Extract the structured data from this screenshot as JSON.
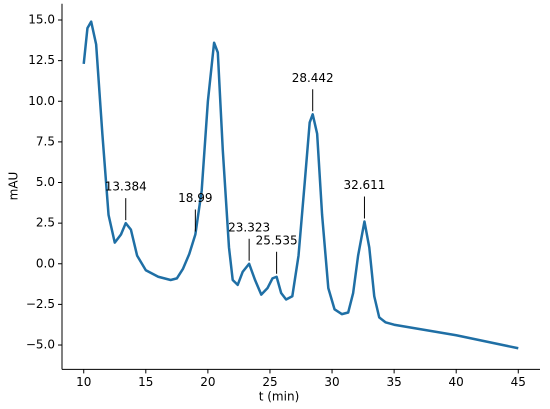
{
  "chart_data": {
    "type": "line",
    "xlabel": "t (min)",
    "ylabel": "mAU",
    "x": [
      10,
      10.3,
      10.6,
      11,
      11.5,
      12,
      12.5,
      13,
      13.384,
      13.8,
      14.3,
      15,
      16,
      17,
      17.5,
      18,
      18.5,
      18.99,
      19.5,
      20,
      20.5,
      20.8,
      21.2,
      21.7,
      22,
      22.4,
      22.8,
      23.323,
      23.8,
      24.3,
      24.8,
      25.2,
      25.535,
      25.9,
      26.3,
      26.8,
      27.3,
      27.8,
      28.2,
      28.442,
      28.8,
      29.2,
      29.7,
      30.2,
      30.8,
      31.3,
      31.7,
      32.1,
      32.611,
      33,
      33.4,
      33.8,
      34.3,
      35,
      40,
      45
    ],
    "series": [
      {
        "color": "#1f6fa5",
        "values": [
          12.3,
          14.5,
          14.9,
          13.5,
          8,
          3,
          1.3,
          1.8,
          2.5,
          2.1,
          0.5,
          -0.4,
          -0.8,
          -1.0,
          -0.9,
          -0.3,
          0.6,
          1.8,
          4.5,
          10,
          13.6,
          13,
          7,
          1,
          -1.0,
          -1.3,
          -0.5,
          0.0,
          -1.0,
          -1.9,
          -1.5,
          -0.9,
          -0.8,
          -1.8,
          -2.2,
          -2.0,
          0.5,
          5,
          8.7,
          9.2,
          8,
          3,
          -1.5,
          -2.8,
          -3.1,
          -3.0,
          -1.8,
          0.5,
          2.6,
          1,
          -2,
          -3.3,
          -3.6,
          -3.75,
          -4.4,
          -5.2
        ]
      }
    ],
    "annotations": [
      {
        "text": "13.384",
        "x": 13.384,
        "y": 2.5
      },
      {
        "text": "18.99",
        "x": 18.99,
        "y": 1.8
      },
      {
        "text": "23.323",
        "x": 23.323,
        "y": 0.0
      },
      {
        "text": "25.535",
        "x": 25.535,
        "y": -0.8
      },
      {
        "text": "28.442",
        "x": 28.442,
        "y": 9.2
      },
      {
        "text": "32.611",
        "x": 32.611,
        "y": 2.6
      }
    ],
    "xlim": [
      8.25,
      46.75
    ],
    "xticks": [
      10,
      15,
      20,
      25,
      30,
      35,
      40,
      45
    ],
    "ylim": [
      -6.5,
      16
    ],
    "yticks": [
      {
        "value": -5,
        "label": "−5.0"
      },
      {
        "value": -2.5,
        "label": "−2.5"
      },
      {
        "value": 0,
        "label": "0.0"
      },
      {
        "value": 2.5,
        "label": "2.5"
      },
      {
        "value": 5,
        "label": "5.0"
      },
      {
        "value": 7.5,
        "label": "7.5"
      },
      {
        "value": 10,
        "label": "10.0"
      },
      {
        "value": 12.5,
        "label": "12.5"
      },
      {
        "value": 15,
        "label": "15.0"
      }
    ]
  }
}
